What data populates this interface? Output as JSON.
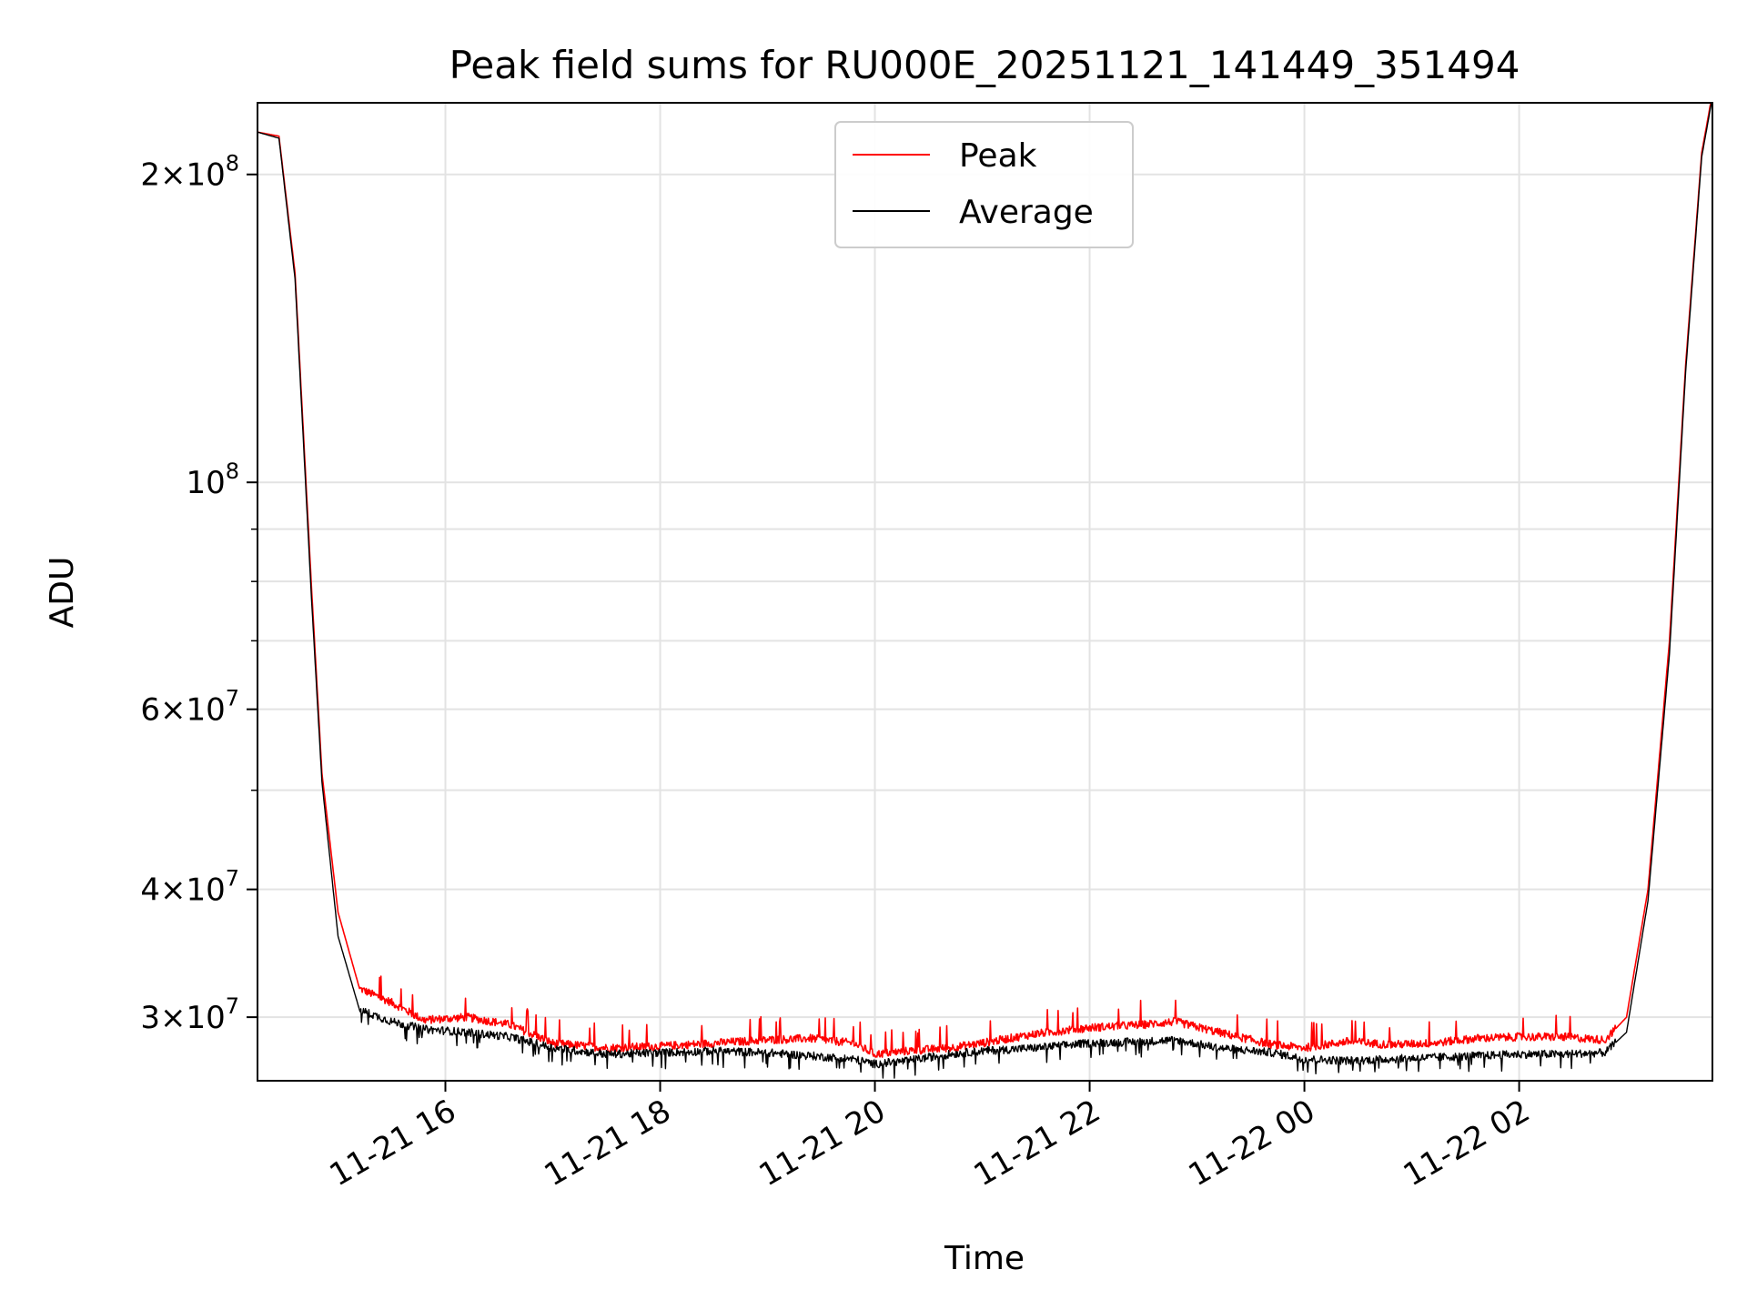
{
  "chart_data": {
    "type": "line",
    "title": "Peak field sums for RU000E_20251121_141449_351494",
    "xlabel": "Time",
    "ylabel": "ADU",
    "yscale": "log",
    "ylim": [
      26000000,
      235000000
    ],
    "xlim_hours": [
      14.25,
      27.8
    ],
    "grid": true,
    "legend_position": "upper-center",
    "x_ticks": [
      {
        "hours": 16,
        "label": "11-21 16"
      },
      {
        "hours": 18,
        "label": "11-21 18"
      },
      {
        "hours": 20,
        "label": "11-21 20"
      },
      {
        "hours": 22,
        "label": "11-21 22"
      },
      {
        "hours": 24,
        "label": "11-22 00"
      },
      {
        "hours": 26,
        "label": "11-22 02"
      }
    ],
    "y_ticks": [
      {
        "value": 30000000,
        "mantissa": "3",
        "exponent": "7"
      },
      {
        "value": 40000000,
        "mantissa": "4",
        "exponent": "7"
      },
      {
        "value": 60000000,
        "mantissa": "6",
        "exponent": "7"
      },
      {
        "value": 100000000,
        "mantissa": "",
        "exponent": "8"
      },
      {
        "value": 200000000,
        "mantissa": "2",
        "exponent": "8"
      }
    ],
    "y_minor_ticks": [
      50000000,
      70000000,
      80000000,
      90000000
    ],
    "series": [
      {
        "name": "Peak",
        "color": "#ff0000",
        "x_hours": [
          14.25,
          14.45,
          14.6,
          14.75,
          14.85,
          15.0,
          15.2,
          15.5,
          15.8,
          16.2,
          16.6,
          17.0,
          17.5,
          18.0,
          18.5,
          19.0,
          19.4,
          19.8,
          20.0,
          20.3,
          20.7,
          21.0,
          21.5,
          22.0,
          22.5,
          22.8,
          23.2,
          23.7,
          24.0,
          24.4,
          24.8,
          25.2,
          25.6,
          26.0,
          26.4,
          26.8,
          27.0,
          27.2,
          27.4,
          27.55,
          27.7,
          27.8
        ],
        "values": [
          220000000,
          218000000,
          160000000,
          80000000,
          52000000,
          38000000,
          32000000,
          31000000,
          29800000,
          30000000,
          29500000,
          28300000,
          28000000,
          28100000,
          28300000,
          28500000,
          28600000,
          28300000,
          27600000,
          27800000,
          28000000,
          28300000,
          28900000,
          29300000,
          29500000,
          29700000,
          29000000,
          28200000,
          28000000,
          28400000,
          28200000,
          28300000,
          28600000,
          28700000,
          28700000,
          28500000,
          30000000,
          40000000,
          70000000,
          130000000,
          210000000,
          240000000
        ]
      },
      {
        "name": "Average",
        "color": "#000000",
        "x_hours": [
          14.25,
          14.45,
          14.6,
          14.75,
          14.85,
          15.0,
          15.2,
          15.5,
          15.8,
          16.2,
          16.6,
          17.0,
          17.5,
          18.0,
          18.5,
          19.0,
          19.4,
          19.8,
          20.0,
          20.3,
          20.7,
          21.0,
          21.5,
          22.0,
          22.5,
          22.8,
          23.2,
          23.7,
          24.0,
          24.4,
          24.8,
          25.2,
          25.6,
          26.0,
          26.4,
          26.8,
          27.0,
          27.2,
          27.4,
          27.55,
          27.7,
          27.8
        ],
        "values": [
          220000000,
          217000000,
          158000000,
          78000000,
          51000000,
          36000000,
          30500000,
          29700000,
          29200000,
          29000000,
          28700000,
          28000000,
          27600000,
          27700000,
          27800000,
          27700000,
          27500000,
          27300000,
          27000000,
          27200000,
          27600000,
          27800000,
          28000000,
          28300000,
          28400000,
          28500000,
          28000000,
          27700000,
          27300000,
          27200000,
          27300000,
          27400000,
          27500000,
          27600000,
          27600000,
          27700000,
          29000000,
          39000000,
          68000000,
          128000000,
          208000000,
          238000000
        ]
      }
    ],
    "legend": [
      {
        "name": "Peak",
        "color": "#ff0000"
      },
      {
        "name": "Average",
        "color": "#000000"
      }
    ]
  }
}
